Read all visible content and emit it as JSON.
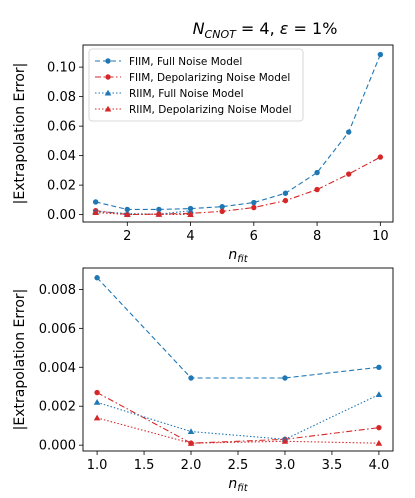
{
  "title": {
    "n": "N",
    "sub": "CNOT",
    "rest": " = 4, ",
    "eps": "ε",
    "rest2": " = 1%"
  },
  "colors": {
    "blue": "#1f77b4",
    "red": "#d62728"
  },
  "chart_data": [
    {
      "type": "line",
      "xlabel": "n",
      "xlabel_sub": "fit",
      "ylabel": "|Extrapolation Error|",
      "xlim": [
        0.6,
        10.4
      ],
      "ylim": [
        -0.005,
        0.115
      ],
      "xticks": [
        2,
        4,
        6,
        8,
        10
      ],
      "xtick_labels": [
        "2",
        "4",
        "6",
        "8",
        "10"
      ],
      "yticks": [
        0.0,
        0.02,
        0.04,
        0.06,
        0.08,
        0.1
      ],
      "ytick_labels": [
        "0.00",
        "0.02",
        "0.04",
        "0.06",
        "0.08",
        "0.10"
      ],
      "legend_position": "upper-left",
      "series": [
        {
          "name": "FIIM, Full Noise Model",
          "color": "#1f77b4",
          "linestyle": "dashed",
          "marker": "circle",
          "x": [
            1,
            2,
            3,
            4,
            5,
            6,
            7,
            8,
            9,
            10
          ],
          "y": [
            0.0086,
            0.0035,
            0.0035,
            0.0041,
            0.0054,
            0.0082,
            0.0145,
            0.0285,
            0.056,
            0.1085
          ]
        },
        {
          "name": "FIIM, Depolarizing Noise Model",
          "color": "#d62728",
          "linestyle": "dashdot",
          "marker": "circle",
          "x": [
            1,
            2,
            3,
            4,
            5,
            6,
            7,
            8,
            9,
            10
          ],
          "y": [
            0.0027,
            0.0001,
            0.0003,
            0.0009,
            0.0022,
            0.0048,
            0.0095,
            0.017,
            0.0275,
            0.039
          ]
        },
        {
          "name": "RIIM, Full Noise Model",
          "color": "#1f77b4",
          "linestyle": "dotted",
          "marker": "triangle",
          "x": [
            1,
            2,
            3,
            4
          ],
          "y": [
            0.0022,
            0.0007,
            0.0003,
            0.0026
          ]
        },
        {
          "name": "RIIM, Depolarizing Noise Model",
          "color": "#d62728",
          "linestyle": "dotted",
          "marker": "triangle",
          "x": [
            1,
            2,
            3,
            4
          ],
          "y": [
            0.0014,
            0.0001,
            0.0002,
            0.0001
          ]
        }
      ]
    },
    {
      "type": "line",
      "xlabel": "n",
      "xlabel_sub": "fit",
      "ylabel": "|Extrapolation Error|",
      "xlim": [
        0.85,
        4.15
      ],
      "ylim": [
        -0.0003,
        0.0091
      ],
      "xticks": [
        1.0,
        1.5,
        2.0,
        2.5,
        3.0,
        3.5,
        4.0
      ],
      "xtick_labels": [
        "1.0",
        "1.5",
        "2.0",
        "2.5",
        "3.0",
        "3.5",
        "4.0"
      ],
      "yticks": [
        0.0,
        0.002,
        0.004,
        0.006,
        0.008
      ],
      "ytick_labels": [
        "0.000",
        "0.002",
        "0.004",
        "0.006",
        "0.008"
      ],
      "series": [
        {
          "name": "FIIM, Full Noise Model",
          "color": "#1f77b4",
          "linestyle": "dashed",
          "marker": "circle",
          "x": [
            1,
            2,
            3,
            4
          ],
          "y": [
            0.0086,
            0.00345,
            0.00345,
            0.004
          ]
        },
        {
          "name": "FIIM, Depolarizing Noise Model",
          "color": "#d62728",
          "linestyle": "dashdot",
          "marker": "circle",
          "x": [
            1,
            2,
            3,
            4
          ],
          "y": [
            0.0027,
            0.0001,
            0.0003,
            0.0009
          ]
        },
        {
          "name": "RIIM, Full Noise Model",
          "color": "#1f77b4",
          "linestyle": "dotted",
          "marker": "triangle",
          "x": [
            1,
            2,
            3,
            4
          ],
          "y": [
            0.0022,
            0.0007,
            0.0003,
            0.0026
          ]
        },
        {
          "name": "RIIM, Depolarizing Noise Model",
          "color": "#d62728",
          "linestyle": "dotted",
          "marker": "triangle",
          "x": [
            1,
            2,
            3,
            4
          ],
          "y": [
            0.0014,
            0.0001,
            0.0002,
            0.0001
          ]
        }
      ]
    }
  ]
}
